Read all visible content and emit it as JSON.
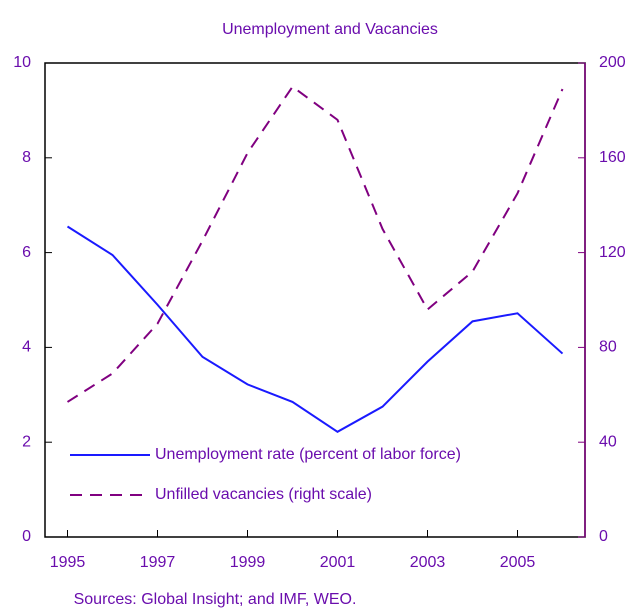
{
  "chart_data": {
    "type": "line",
    "title": "Unemployment and Vacancies",
    "x": [
      1995,
      1996,
      1997,
      1998,
      1999,
      2000,
      2001,
      2002,
      2003,
      2004,
      2005,
      2006
    ],
    "xlim": [
      1994.5,
      2006.5
    ],
    "xticks": [
      1995,
      1997,
      1999,
      2001,
      2003,
      2005
    ],
    "ylim": [
      0,
      10
    ],
    "yticks": [
      0,
      2,
      4,
      6,
      8,
      10
    ],
    "y2lim": [
      0,
      200
    ],
    "y2ticks": [
      0,
      40,
      80,
      120,
      160,
      200
    ],
    "series": [
      {
        "name": "Unemployment rate (percent of labor force)",
        "color": "#1a1aff",
        "dash": false,
        "values": [
          6.55,
          5.95,
          4.9,
          3.8,
          3.22,
          2.85,
          2.22,
          2.75,
          3.7,
          4.55,
          4.72,
          3.87
        ]
      },
      {
        "name": "Unfilled vacancies (right scale)",
        "color": "#800080",
        "dash": true,
        "axis": "y2",
        "values": [
          57,
          69,
          90,
          125,
          162,
          190,
          176,
          130,
          96,
          112,
          145,
          189
        ]
      }
    ],
    "note": "Sources: Global Insight; and IMF, WEO."
  }
}
